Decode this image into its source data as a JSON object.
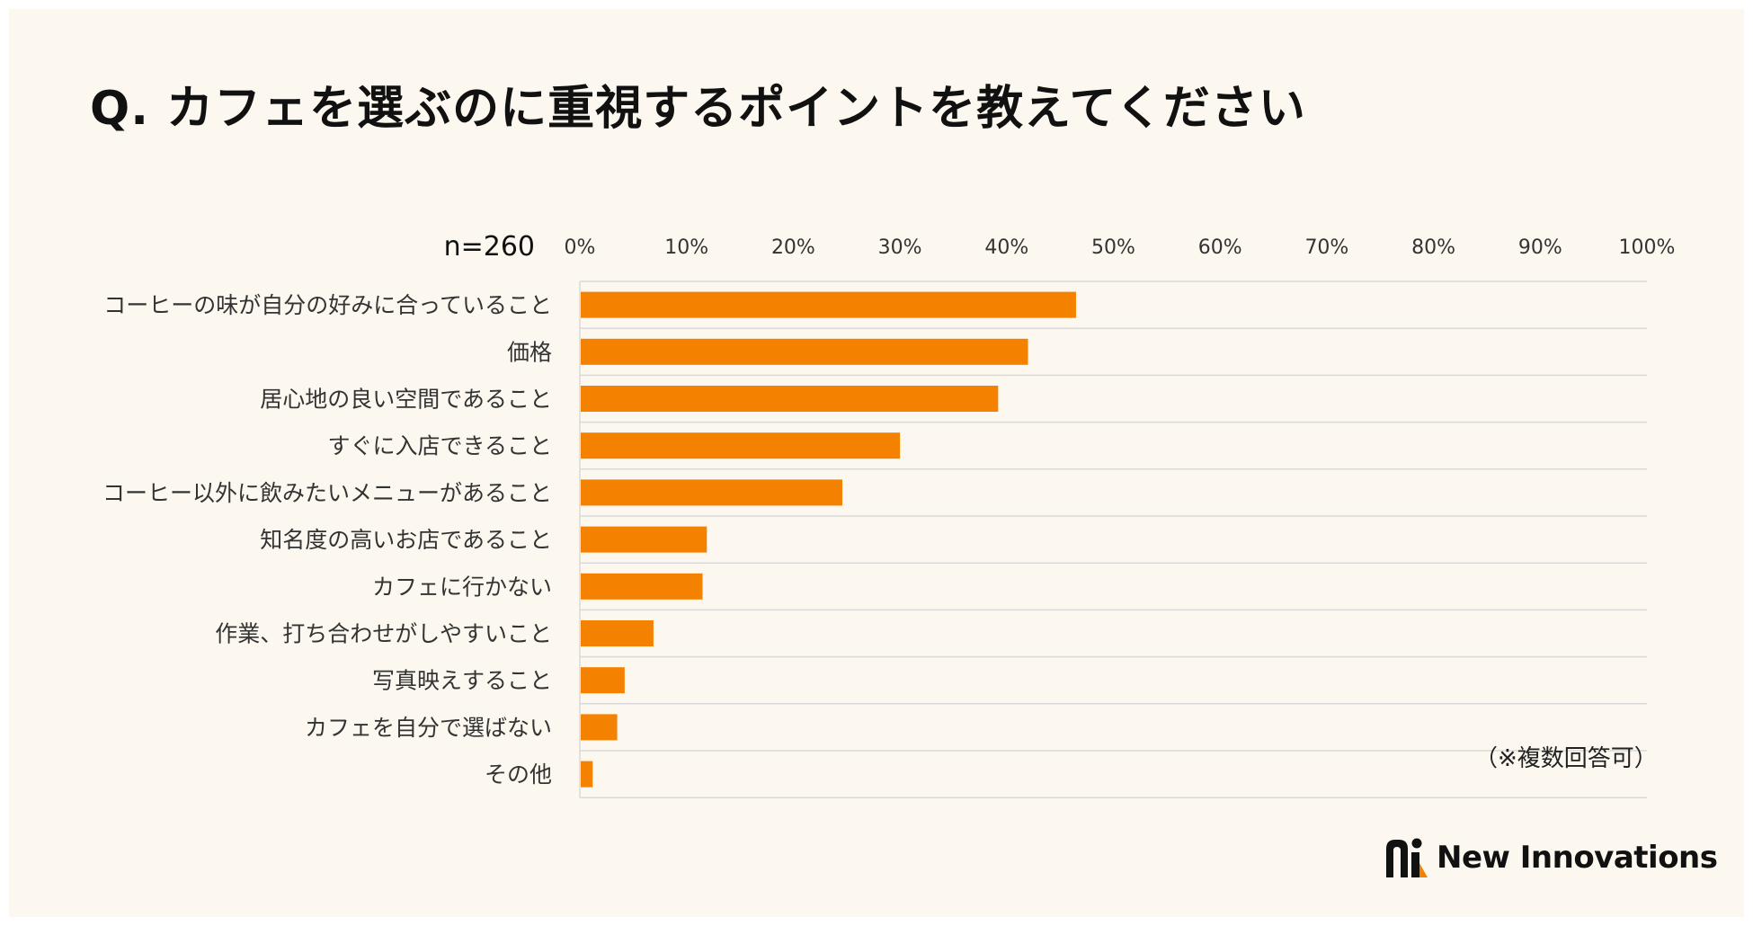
{
  "title": "Q.  カフェを選ぶのに重視するポイントを教えてください",
  "sample_size": "n=260",
  "footnote": "（※複数回答可）",
  "brand": {
    "name": "New Innovations",
    "icon": "new-innovations-logo-icon",
    "accent": "#f58100"
  },
  "colors": {
    "background": "#fcf8ef",
    "bar": "#f58100",
    "grid": "#d9d9d9",
    "text": "#333333"
  },
  "chart_data": {
    "type": "bar",
    "orientation": "horizontal",
    "categories": [
      "コーヒーの味が自分の好みに合っていること",
      "価格",
      "居心地の良い空間であること",
      "すぐに入店できること",
      "コーヒー以外に飲みたいメニューがあること",
      "知名度の高いお店であること",
      "カフェに行かない",
      "作業、打ち合わせがしやすいこと",
      "写真映えすること",
      "カフェを自分で選ばない",
      "その他"
    ],
    "values": [
      46.5,
      42,
      39.2,
      30,
      24.6,
      11.9,
      11.5,
      6.9,
      4.2,
      3.5,
      1.2
    ],
    "xlim": [
      0,
      100
    ],
    "x_ticks": [
      "0%",
      "10%",
      "20%",
      "30%",
      "40%",
      "50%",
      "60%",
      "70%",
      "80%",
      "90%",
      "100%"
    ],
    "x_axis_position": "top",
    "grid": true,
    "legend": "none",
    "xlabel": "",
    "ylabel": ""
  }
}
